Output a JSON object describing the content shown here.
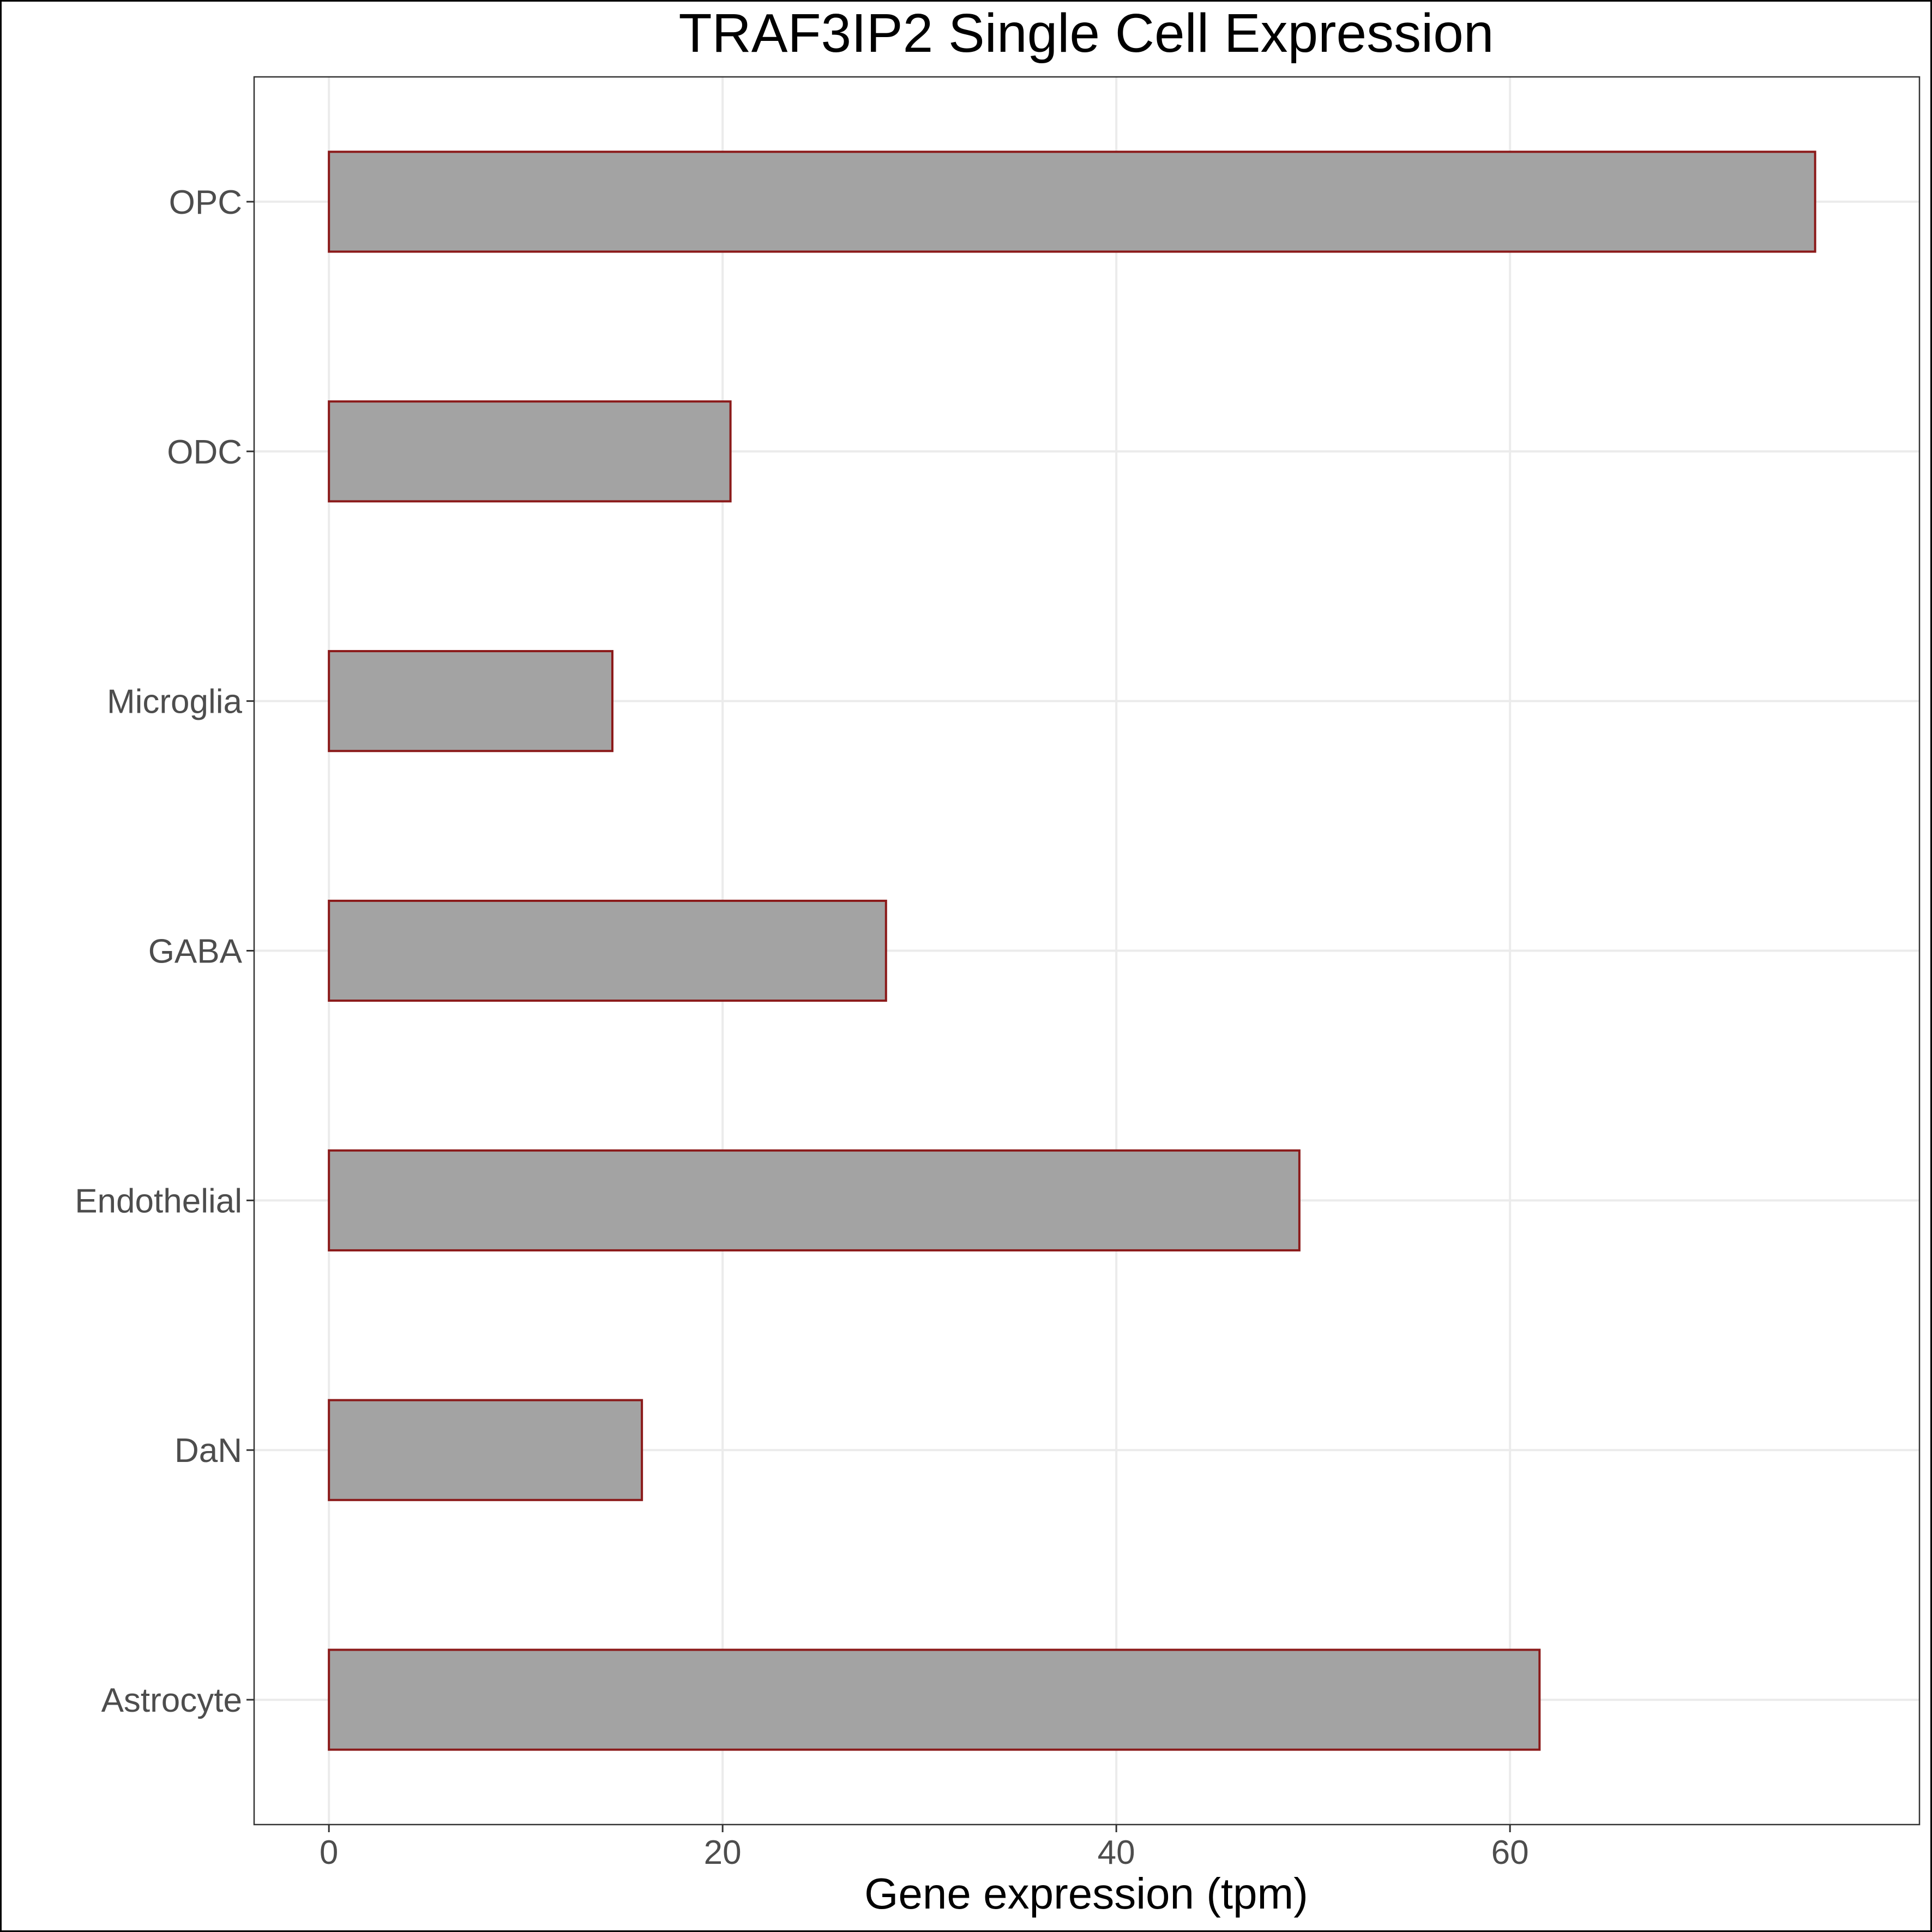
{
  "chart_data": {
    "type": "bar",
    "orientation": "horizontal",
    "title": "TRAF3IP2 Single Cell Expression",
    "xlabel": "Gene expression (tpm)",
    "ylabel": "",
    "categories": [
      "Astrocyte",
      "DaN",
      "Endothelial",
      "GABA",
      "Microglia",
      "ODC",
      "OPC"
    ],
    "values": [
      61.5,
      15.9,
      49.3,
      28.3,
      14.4,
      20.4,
      75.5
    ],
    "xlim": [
      -3.8,
      80.8
    ],
    "xticks": [
      0,
      20,
      40,
      60
    ],
    "grid": true,
    "legend": "none",
    "colors": {
      "bar_fill": "#a3a3a3",
      "bar_stroke": "#8b1a1a",
      "grid": "#ebebeb",
      "panel_border": "#333333",
      "tick_text": "#4d4d4d"
    }
  }
}
